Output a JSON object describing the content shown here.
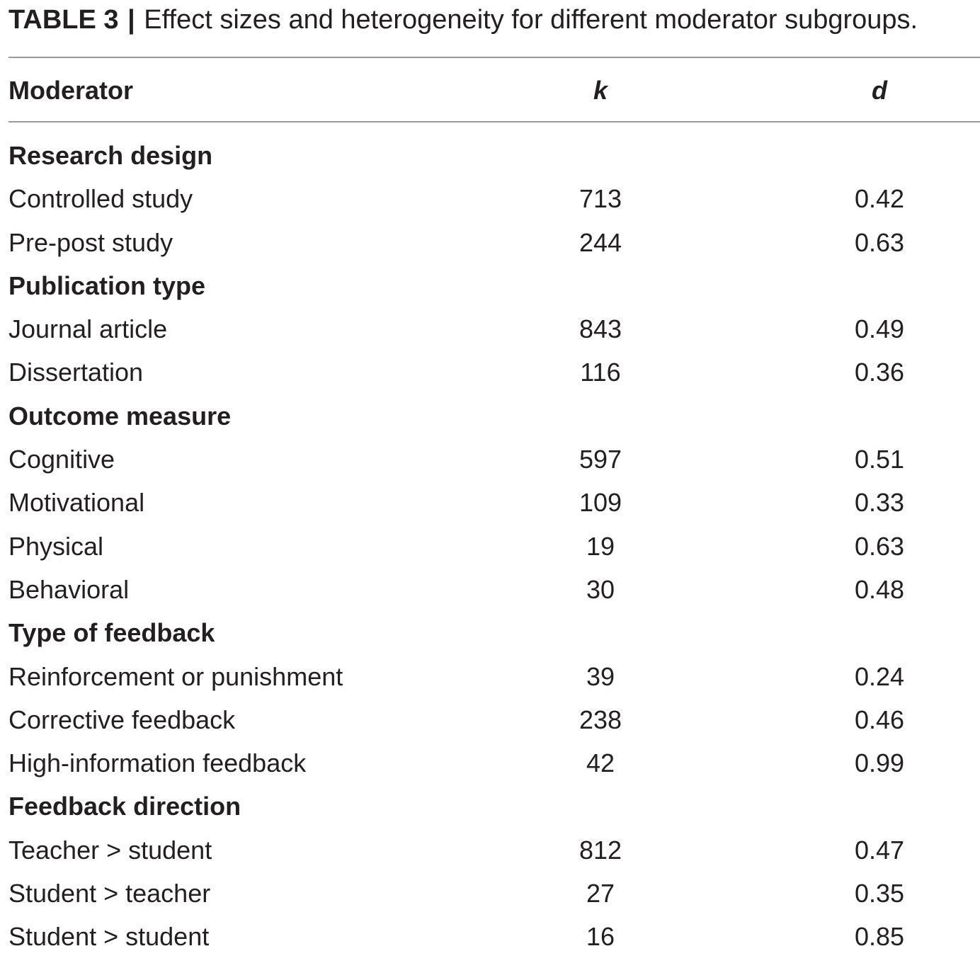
{
  "caption": {
    "label": "TABLE 3",
    "separator": "|",
    "text": "Effect sizes and heterogeneity for different moderator subgroups."
  },
  "header": {
    "moderator": "Moderator",
    "k": "k",
    "d": "d"
  },
  "rows": [
    {
      "type": "group",
      "name": "Research design",
      "k": "",
      "d": ""
    },
    {
      "type": "item",
      "name": "Controlled study",
      "k": "713",
      "d": "0.42"
    },
    {
      "type": "item",
      "name": "Pre-post study",
      "k": "244",
      "d": "0.63"
    },
    {
      "type": "group",
      "name": "Publication type",
      "k": "",
      "d": ""
    },
    {
      "type": "item",
      "name": "Journal article",
      "k": "843",
      "d": "0.49"
    },
    {
      "type": "item",
      "name": "Dissertation",
      "k": "116",
      "d": "0.36"
    },
    {
      "type": "group",
      "name": "Outcome measure",
      "k": "",
      "d": ""
    },
    {
      "type": "item",
      "name": "Cognitive",
      "k": "597",
      "d": "0.51"
    },
    {
      "type": "item",
      "name": "Motivational",
      "k": "109",
      "d": "0.33"
    },
    {
      "type": "item",
      "name": "Physical",
      "k": "19",
      "d": "0.63"
    },
    {
      "type": "item",
      "name": "Behavioral",
      "k": "30",
      "d": "0.48"
    },
    {
      "type": "group",
      "name": "Type of feedback",
      "k": "",
      "d": ""
    },
    {
      "type": "item",
      "name": "Reinforcement or punishment",
      "k": "39",
      "d": "0.24"
    },
    {
      "type": "item",
      "name": "Corrective feedback",
      "k": "238",
      "d": "0.46"
    },
    {
      "type": "item",
      "name": "High-information feedback",
      "k": "42",
      "d": "0.99"
    },
    {
      "type": "group",
      "name": "Feedback direction",
      "k": "",
      "d": ""
    },
    {
      "type": "item",
      "name": "Teacher > student",
      "k": "812",
      "d": "0.47"
    },
    {
      "type": "item",
      "name": "Student > teacher",
      "k": "27",
      "d": "0.35"
    },
    {
      "type": "item",
      "name": "Student > student",
      "k": "16",
      "d": "0.85"
    }
  ]
}
